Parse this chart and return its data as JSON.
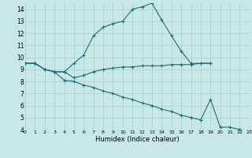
{
  "xlabel": "Humidex (Indice chaleur)",
  "bg_color": "#c8e8e8",
  "grid_color": "#a8cccc",
  "line_color": "#1a7070",
  "xlim": [
    0,
    23
  ],
  "ylim": [
    4,
    14.5
  ],
  "xtick_labels": [
    "0",
    "1",
    "2",
    "3",
    "4",
    "5",
    "6",
    "7",
    "8",
    "9",
    "10",
    "11",
    "12",
    "13",
    "14",
    "15",
    "16",
    "17",
    "18",
    "19",
    "20",
    "21",
    "22",
    "23"
  ],
  "xticks": [
    0,
    1,
    2,
    3,
    4,
    5,
    6,
    7,
    8,
    9,
    10,
    11,
    12,
    13,
    14,
    15,
    16,
    17,
    18,
    19,
    20,
    21,
    22,
    23
  ],
  "yticks": [
    4,
    5,
    6,
    7,
    8,
    9,
    10,
    11,
    12,
    13,
    14
  ],
  "line1_x": [
    0,
    1,
    2,
    3,
    4,
    5,
    6,
    7,
    8,
    9,
    10,
    11,
    12,
    13,
    14,
    15,
    16,
    17,
    18,
    19
  ],
  "line1_y": [
    9.5,
    9.5,
    9.0,
    8.8,
    8.8,
    9.5,
    10.2,
    11.8,
    12.5,
    12.8,
    13.0,
    14.0,
    14.2,
    14.5,
    13.1,
    11.8,
    10.5,
    9.5,
    9.5,
    9.5
  ],
  "line2_x": [
    0,
    1,
    2,
    3,
    4,
    5,
    6,
    7,
    8,
    9,
    10,
    11,
    12,
    13,
    14,
    15,
    16,
    17,
    18,
    19
  ],
  "line2_y": [
    9.5,
    9.5,
    9.0,
    8.8,
    8.8,
    8.3,
    8.5,
    8.8,
    9.0,
    9.1,
    9.2,
    9.2,
    9.3,
    9.3,
    9.3,
    9.4,
    9.4,
    9.4,
    9.5,
    9.5
  ],
  "line3_x": [
    0,
    1,
    2,
    3,
    4,
    5,
    6,
    7,
    8,
    9,
    10,
    11,
    12,
    13,
    14,
    15,
    16,
    17,
    18,
    19,
    20,
    21,
    22,
    23
  ],
  "line3_y": [
    9.5,
    9.5,
    9.0,
    8.8,
    8.1,
    8.0,
    7.7,
    7.5,
    7.2,
    7.0,
    6.7,
    6.5,
    6.2,
    6.0,
    5.7,
    5.5,
    5.2,
    5.0,
    4.8,
    6.5,
    4.2,
    4.2,
    4.0,
    3.9
  ]
}
